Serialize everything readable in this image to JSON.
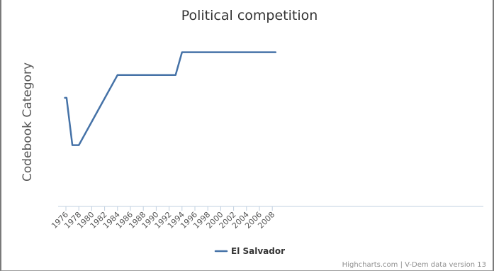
{
  "chart_data": {
    "type": "line",
    "title": "Political competition",
    "xlabel": "",
    "ylabel": "Codebook Category",
    "xlim": [
      1976,
      2008.5
    ],
    "ylim": [
      0,
      10
    ],
    "x_ticks": [
      "1976",
      "1978",
      "1980",
      "1982",
      "1984",
      "1986",
      "1988",
      "1990",
      "1992",
      "1994",
      "1996",
      "1998",
      "2000",
      "2002",
      "2004",
      "2006",
      "2008"
    ],
    "grid": false,
    "legend_position": "bottom-center",
    "series": [
      {
        "name": "El Salvador",
        "color": "#4572A7",
        "points": [
          {
            "x": 1975.85,
            "y": 6.2
          },
          {
            "x": 1976.1,
            "y": 6.2
          },
          {
            "x": 1977,
            "y": 3.5
          },
          {
            "x": 1978,
            "y": 3.5
          },
          {
            "x": 1984,
            "y": 7.5
          },
          {
            "x": 1993,
            "y": 7.5
          },
          {
            "x": 1994,
            "y": 8.8
          },
          {
            "x": 2008.5,
            "y": 8.8
          }
        ]
      }
    ]
  },
  "credits": "Highcharts.com | V-Dem data version 13"
}
